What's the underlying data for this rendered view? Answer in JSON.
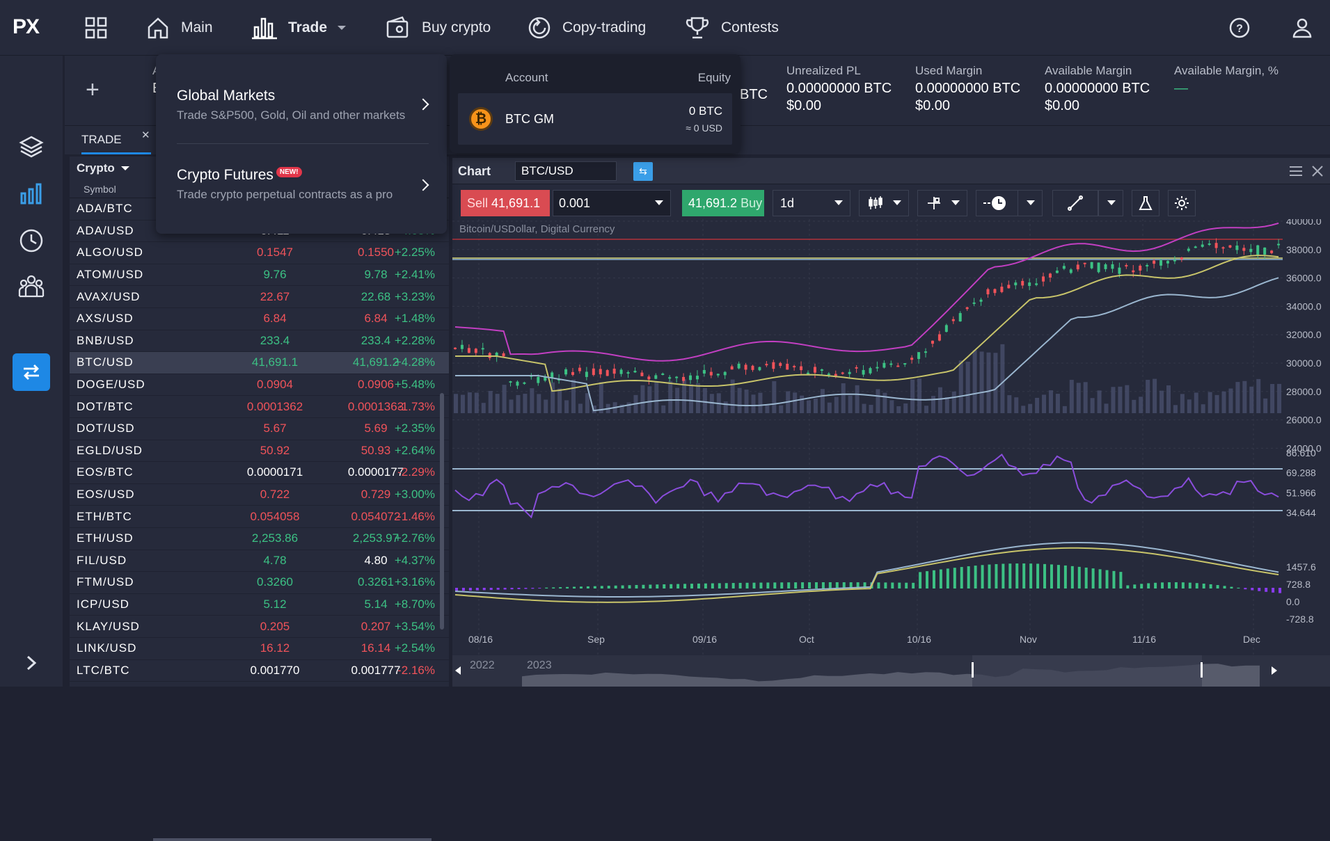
{
  "logo": "PX",
  "nav": {
    "main": "Main",
    "trade": "Trade",
    "buy_crypto": "Buy crypto",
    "copy_trading": "Copy-trading",
    "contests": "Contests"
  },
  "account_bar": {
    "partial_label": "A",
    "partial_value": "E",
    "btc_tail": "BTC",
    "unrealized": {
      "label": "Unrealized PL",
      "value": "0.00000000 BTC",
      "usd": "$0.00"
    },
    "used_margin": {
      "label": "Used Margin",
      "value": "0.00000000 BTC",
      "usd": "$0.00"
    },
    "available_margin": {
      "label": "Available Margin",
      "value": "0.00000000 BTC",
      "usd": "$0.00"
    },
    "available_pct": {
      "label": "Available Margin, %",
      "value": "—"
    }
  },
  "tab": {
    "label": "TRADE"
  },
  "watchlist": {
    "category": "Crypto",
    "symbol_header": "Symbol",
    "rows": [
      {
        "sym": "ADA/BTC",
        "bid": "",
        "ask": "",
        "chg": "",
        "cb": "white",
        "ca": "white"
      },
      {
        "sym": "ADA/USD",
        "bid": "0.411",
        "ask": "0.413",
        "chg": "+4.05%",
        "cb": "white",
        "ca": "white"
      },
      {
        "sym": "ALGO/USD",
        "bid": "0.1547",
        "ask": "0.1550",
        "chg": "+2.25%",
        "cb": "red",
        "ca": "red"
      },
      {
        "sym": "ATOM/USD",
        "bid": "9.76",
        "ask": "9.78",
        "chg": "+2.41%",
        "cb": "green",
        "ca": "green"
      },
      {
        "sym": "AVAX/USD",
        "bid": "22.67",
        "ask": "22.68",
        "chg": "+3.23%",
        "cb": "red",
        "ca": "green"
      },
      {
        "sym": "AXS/USD",
        "bid": "6.84",
        "ask": "6.84",
        "chg": "+1.48%",
        "cb": "red",
        "ca": "red"
      },
      {
        "sym": "BNB/USD",
        "bid": "233.4",
        "ask": "233.4",
        "chg": "+2.28%",
        "cb": "green",
        "ca": "green"
      },
      {
        "sym": "BTC/USD",
        "bid": "41,691.1",
        "ask": "41,691.2",
        "chg": "+4.28%",
        "cb": "green",
        "ca": "green"
      },
      {
        "sym": "DOGE/USD",
        "bid": "0.0904",
        "ask": "0.0906",
        "chg": "+5.48%",
        "cb": "red",
        "ca": "red"
      },
      {
        "sym": "DOT/BTC",
        "bid": "0.0001362",
        "ask": "0.0001363",
        "chg": "-1.73%",
        "cb": "red",
        "ca": "red"
      },
      {
        "sym": "DOT/USD",
        "bid": "5.67",
        "ask": "5.69",
        "chg": "+2.35%",
        "cb": "red",
        "ca": "red"
      },
      {
        "sym": "EGLD/USD",
        "bid": "50.92",
        "ask": "50.93",
        "chg": "+2.64%",
        "cb": "red",
        "ca": "red"
      },
      {
        "sym": "EOS/BTC",
        "bid": "0.0000171",
        "ask": "0.0000177",
        "chg": "-2.29%",
        "cb": "white",
        "ca": "white"
      },
      {
        "sym": "EOS/USD",
        "bid": "0.722",
        "ask": "0.729",
        "chg": "+3.00%",
        "cb": "red",
        "ca": "red"
      },
      {
        "sym": "ETH/BTC",
        "bid": "0.054058",
        "ask": "0.054072",
        "chg": "-1.46%",
        "cb": "red",
        "ca": "red"
      },
      {
        "sym": "ETH/USD",
        "bid": "2,253.86",
        "ask": "2,253.97",
        "chg": "+2.76%",
        "cb": "green",
        "ca": "green"
      },
      {
        "sym": "FIL/USD",
        "bid": "4.78",
        "ask": "4.80",
        "chg": "+4.37%",
        "cb": "green",
        "ca": "white"
      },
      {
        "sym": "FTM/USD",
        "bid": "0.3260",
        "ask": "0.3261",
        "chg": "+3.16%",
        "cb": "green",
        "ca": "green"
      },
      {
        "sym": "ICP/USD",
        "bid": "5.12",
        "ask": "5.14",
        "chg": "+8.70%",
        "cb": "green",
        "ca": "green"
      },
      {
        "sym": "KLAY/USD",
        "bid": "0.205",
        "ask": "0.207",
        "chg": "+3.54%",
        "cb": "red",
        "ca": "red"
      },
      {
        "sym": "LINK/USD",
        "bid": "16.12",
        "ask": "16.14",
        "chg": "+2.54%",
        "cb": "red",
        "ca": "red"
      },
      {
        "sym": "LTC/BTC",
        "bid": "0.001770",
        "ask": "0.001777",
        "chg": "-2.16%",
        "cb": "white",
        "ca": "white"
      }
    ]
  },
  "dropdown": {
    "global_title": "Global Markets",
    "global_desc": "Trade S&P500, Gold, Oil and other markets",
    "futures_title": "Crypto Futures",
    "futures_badge": "NEW!",
    "futures_desc": "Trade crypto perpetual contracts as a pro"
  },
  "account_popup": {
    "account_header": "Account",
    "equity_header": "Equity",
    "name": "BTC GM",
    "equity": "0 BTC",
    "equity_usd": "≈ 0 USD"
  },
  "chart": {
    "title": "Chart",
    "symbol": "BTC/USD",
    "sell_label": "Sell",
    "sell_price": "41,691.1",
    "quantity": "0.001",
    "buy_price": "41,691.2",
    "buy_label": "Buy",
    "timeframe": "1d",
    "subtitle": "Bitcoin/USDollar, Digital Currency"
  },
  "chart_data": {
    "type": "line",
    "price_axis": [
      "40000.0",
      "38000.0",
      "36000.0",
      "34000.0",
      "32000.0",
      "30000.0",
      "28000.0",
      "26000.0",
      "24000.0"
    ],
    "rsi_axis": [
      "86.610",
      "69.288",
      "51.966",
      "34.644"
    ],
    "macd_axis": [
      "1457.6",
      "728.8",
      "0.0",
      "-728.8"
    ],
    "x_labels": [
      "08/16",
      "Sep",
      "09/16",
      "Oct",
      "10/16",
      "Nov",
      "11/16",
      "Dec"
    ],
    "nav_years": [
      "2022",
      "2023"
    ]
  }
}
